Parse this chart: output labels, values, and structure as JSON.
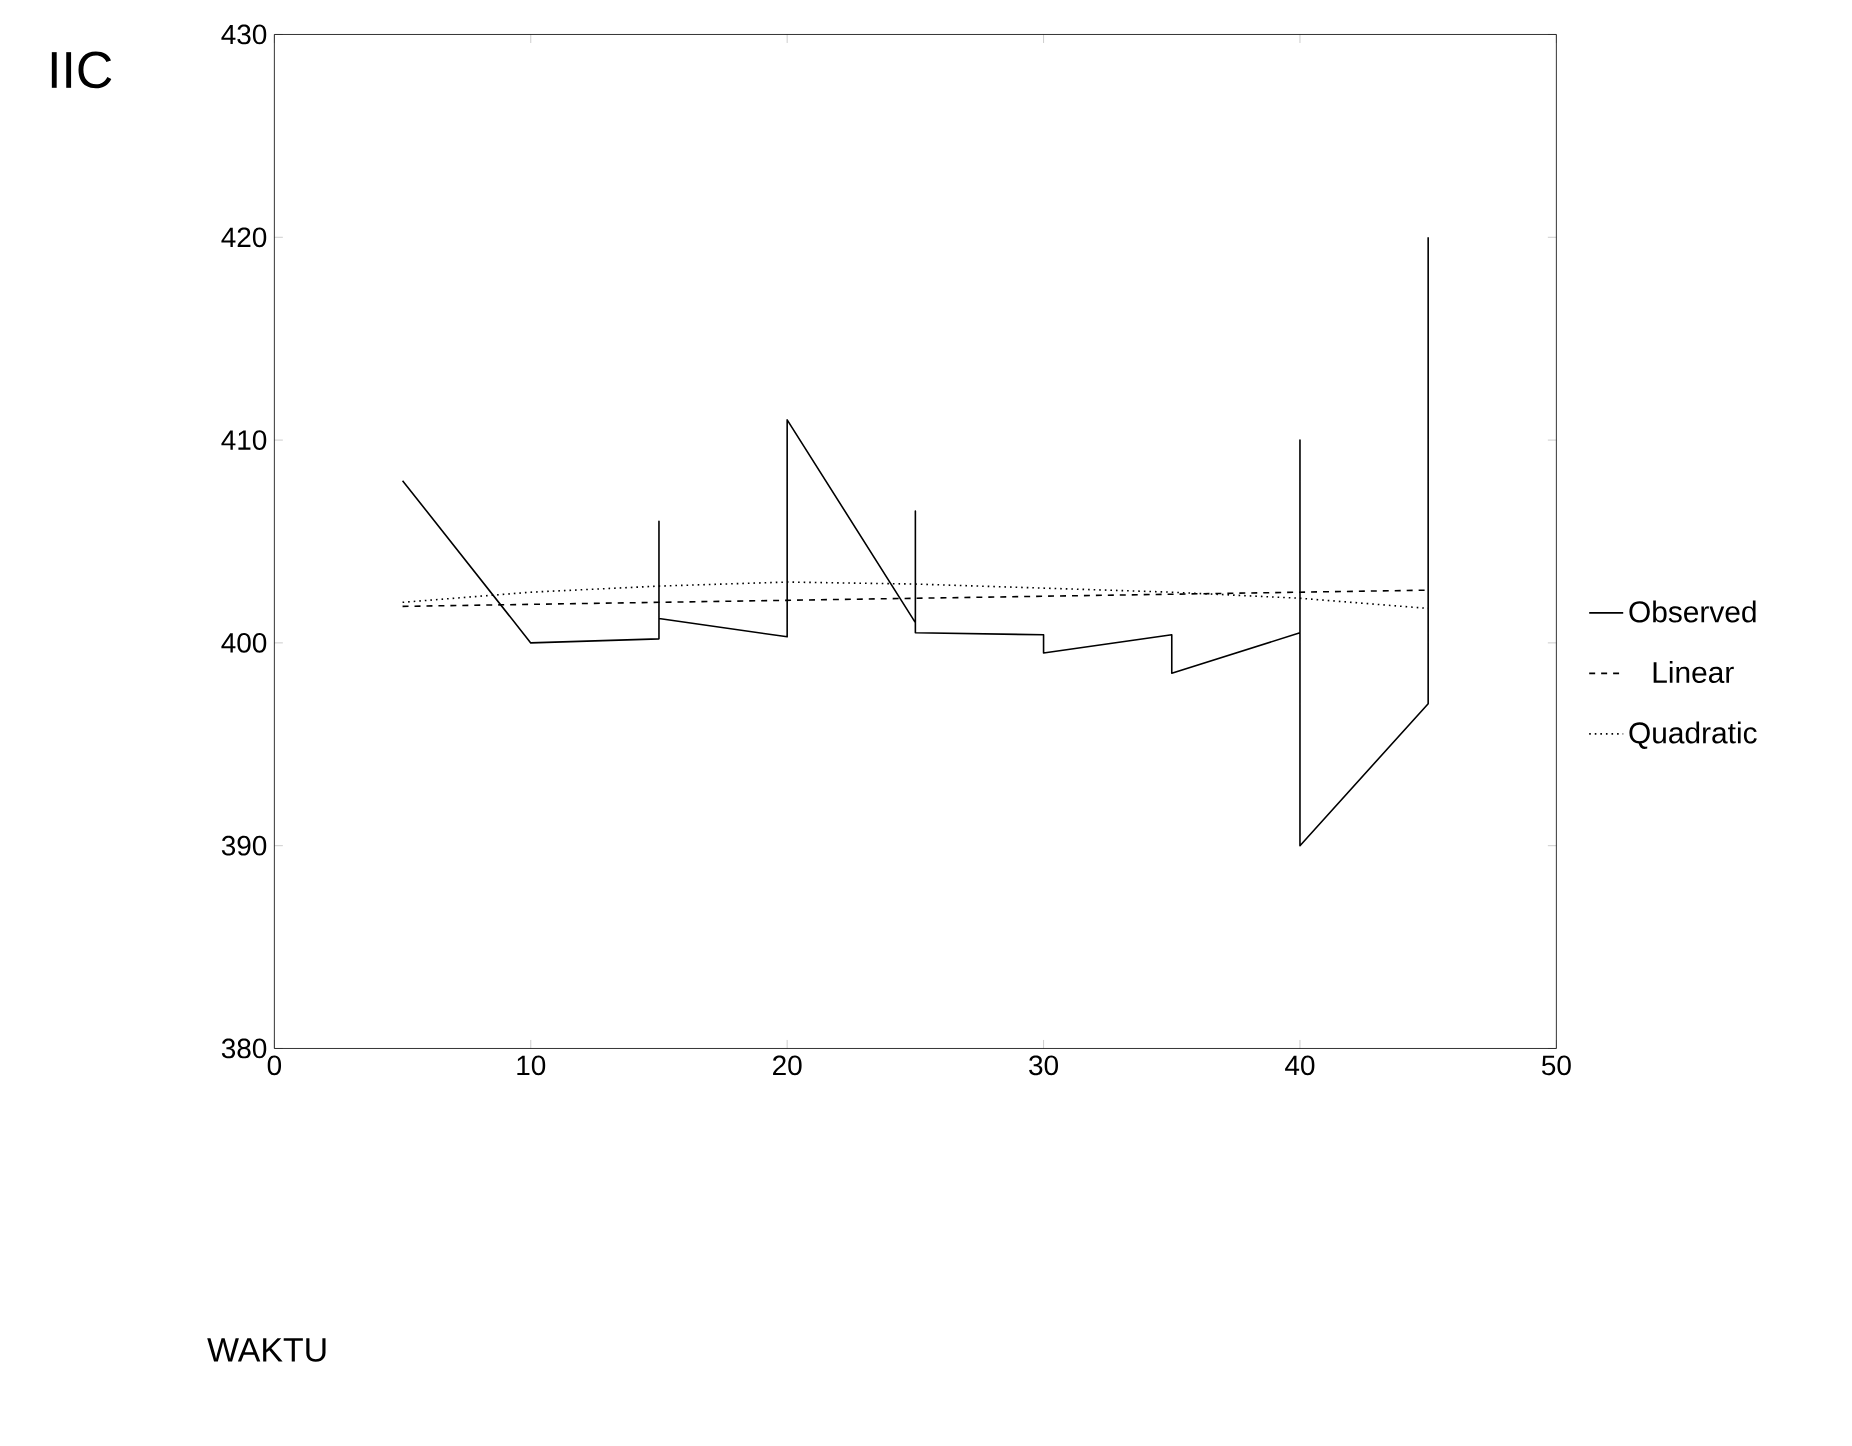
{
  "chart_data": {
    "type": "line",
    "title": "IIC",
    "annotations": [
      "WAKTU"
    ],
    "xlim": [
      0,
      50
    ],
    "xticks": [
      0,
      10,
      20,
      30,
      40,
      50
    ],
    "ylim": [
      380,
      430
    ],
    "yticks": [
      380,
      390,
      400,
      410,
      420,
      430
    ],
    "legend": "right",
    "grid": false,
    "series": [
      {
        "name": "Observed",
        "color": "#000000",
        "line_style": "solid",
        "x": [
          5,
          10,
          15,
          15,
          15,
          20,
          20,
          25,
          25,
          25,
          30,
          30,
          35,
          35,
          40,
          40,
          40,
          45,
          45
        ],
        "values": [
          408,
          400,
          400.2,
          406,
          401.2,
          400.3,
          411,
          401,
          406.5,
          400.5,
          400.4,
          399.5,
          400.4,
          398.5,
          400.5,
          410,
          390,
          397,
          420
        ]
      },
      {
        "name": "Linear",
        "color": "#000000",
        "line_style": "dashed",
        "x": [
          5,
          45
        ],
        "values": [
          401.8,
          402.6
        ]
      },
      {
        "name": "Quadratic",
        "color": "#000000",
        "line_style": "dotted",
        "x": [
          5,
          10,
          15,
          20,
          25,
          30,
          35,
          40,
          45
        ],
        "values": [
          402,
          402.5,
          402.8,
          403,
          402.9,
          402.7,
          402.5,
          402.2,
          401.7
        ]
      }
    ]
  }
}
